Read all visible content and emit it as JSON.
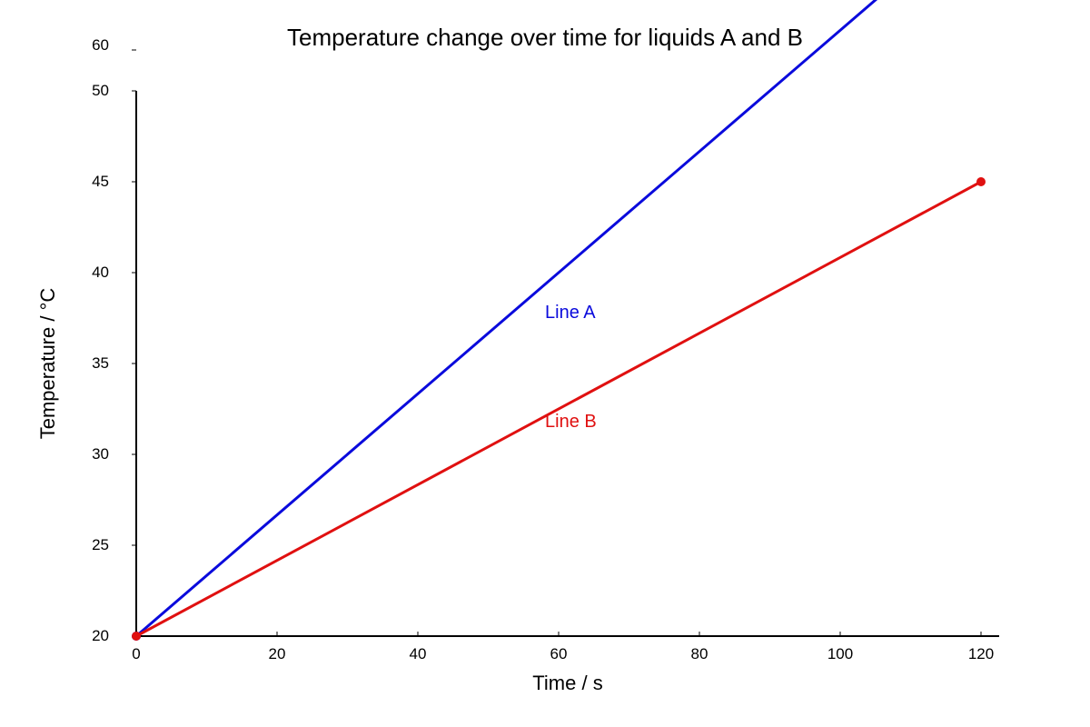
{
  "chart_data": {
    "type": "line",
    "title": "Temperature change over time for liquids A and B",
    "xlabel": "Time / s",
    "ylabel": "Temperature / °C",
    "xlim": [
      0,
      120
    ],
    "ylim": [
      20,
      60
    ],
    "x_ticks": [
      0,
      20,
      40,
      60,
      80,
      100,
      120
    ],
    "y_ticks": [
      20,
      25,
      30,
      35,
      40,
      45,
      50,
      60
    ],
    "grid": false,
    "legend": "none",
    "series": [
      {
        "name": "Line A",
        "color": "#0a0adc",
        "points": [
          [
            0,
            20
          ],
          [
            120,
            60
          ]
        ]
      },
      {
        "name": "Line B",
        "color": "#e01010",
        "points": [
          [
            0,
            20
          ],
          [
            120,
            45
          ]
        ]
      }
    ]
  }
}
